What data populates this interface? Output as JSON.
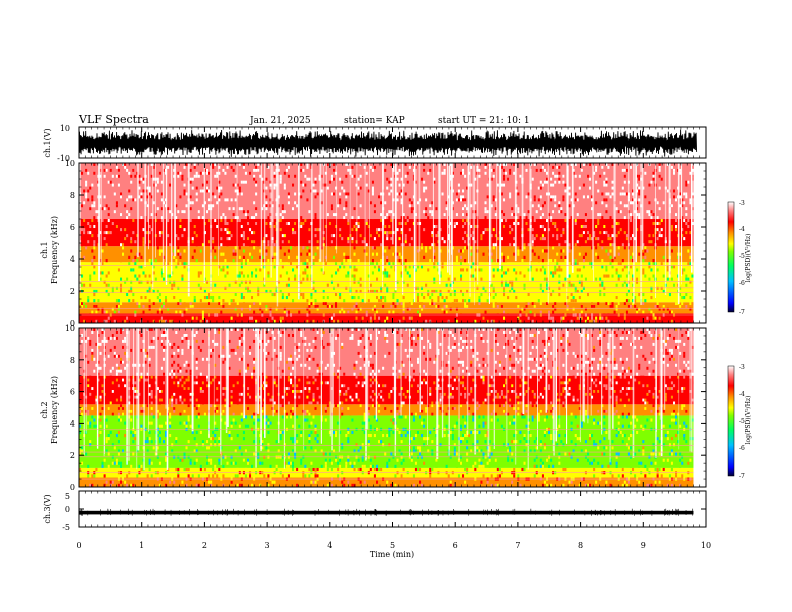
{
  "header": {
    "title": "VLF Spectra",
    "date": "Jan. 21, 2025",
    "station": "station= KAP",
    "start_ut": "start  UT =   21: 10: 1"
  },
  "colorbar": {
    "label": "log(PSD)(V²/Hz)",
    "range": [
      -7,
      -3
    ],
    "tick_labels": [
      "-3",
      "-4",
      "-5",
      "-6",
      "-7"
    ],
    "colors": [
      "#000033",
      "#0000ff",
      "#00c0ff",
      "#00ff60",
      "#7fff00",
      "#ffff00",
      "#ff9000",
      "#ff0000",
      "#ff8080",
      "#ffffff"
    ]
  },
  "chart_data": [
    {
      "id": "ch1-waveform",
      "type": "line",
      "ylabel": "ch.1(V)",
      "ylim": [
        -10,
        10
      ],
      "tick_labels_y": [
        "10",
        "-10"
      ],
      "description_of_values": "dense noise-like oscillation roughly between -9 and +8 V over whole interval",
      "xlim": [
        0,
        10
      ]
    },
    {
      "id": "ch1-spectrogram",
      "type": "heatmap",
      "ylabel": "ch.1\nFrequency (kHz)",
      "ylim": [
        0,
        10
      ],
      "xlim": [
        0,
        10
      ],
      "tick_labels_y": [
        "10",
        "8",
        "6",
        "4",
        "2",
        "0"
      ],
      "bands": [
        {
          "from_khz": 0.0,
          "to_khz": 0.6,
          "level": -4.0
        },
        {
          "from_khz": 0.6,
          "to_khz": 1.3,
          "level": -4.3
        },
        {
          "from_khz": 1.3,
          "to_khz": 3.8,
          "level": -4.9
        },
        {
          "from_khz": 3.8,
          "to_khz": 4.8,
          "level": -4.3
        },
        {
          "from_khz": 4.8,
          "to_khz": 6.5,
          "level": -3.8
        },
        {
          "from_khz": 6.5,
          "to_khz": 10.0,
          "level": -3.3
        }
      ],
      "data_end_min": 9.8
    },
    {
      "id": "ch2-spectrogram",
      "type": "heatmap",
      "ylabel": "ch.2\nFrequency (kHz)",
      "ylim": [
        0,
        10
      ],
      "xlim": [
        0,
        10
      ],
      "tick_labels_y": [
        "10",
        "8",
        "6",
        "4",
        "2",
        "0"
      ],
      "bands": [
        {
          "from_khz": 0.0,
          "to_khz": 0.6,
          "level": -4.2
        },
        {
          "from_khz": 0.6,
          "to_khz": 1.2,
          "level": -4.6
        },
        {
          "from_khz": 1.2,
          "to_khz": 4.5,
          "level": -5.3
        },
        {
          "from_khz": 4.5,
          "to_khz": 5.2,
          "level": -4.2
        },
        {
          "from_khz": 5.2,
          "to_khz": 7.0,
          "level": -3.8
        },
        {
          "from_khz": 7.0,
          "to_khz": 10.0,
          "level": -3.4
        }
      ],
      "data_end_min": 9.8
    },
    {
      "id": "ch3-waveform",
      "type": "line",
      "ylabel": "ch.3(V)",
      "ylim": [
        -5,
        5
      ],
      "tick_labels_y": [
        "5",
        "0",
        "-5"
      ],
      "description_of_values": "flat band near -1 V with small spread",
      "level_v": -1,
      "xlim": [
        0,
        10
      ],
      "data_end_min": 9.8
    }
  ],
  "x_axis": {
    "label": "Time (min)",
    "range": [
      0,
      10
    ],
    "tick_labels": [
      "0",
      "1",
      "2",
      "3",
      "4",
      "5",
      "6",
      "7",
      "8",
      "9",
      "10"
    ]
  }
}
